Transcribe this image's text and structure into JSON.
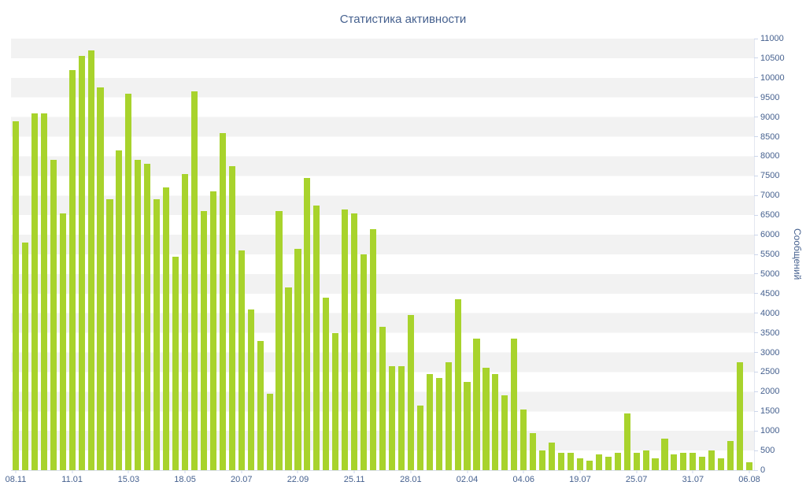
{
  "chart_data": {
    "type": "bar",
    "title": "Статистика активности",
    "xlabel": "",
    "ylabel": "Сообщений",
    "ylim": [
      0,
      11000
    ],
    "ytick_interval": 500,
    "yticks": [
      0,
      500,
      1000,
      1500,
      2000,
      2500,
      3000,
      3500,
      4000,
      4500,
      5000,
      5500,
      6000,
      6500,
      7000,
      7500,
      8000,
      8500,
      9000,
      9500,
      10000,
      10500,
      11000
    ],
    "x_tick_labels": [
      "08.11",
      "11.01",
      "15.03",
      "18.05",
      "20.07",
      "22.09",
      "25.11",
      "28.01",
      "02.04",
      "04.06",
      "19.07",
      "25.07",
      "31.07",
      "06.08"
    ],
    "x_tick_every": 6,
    "values": [
      8900,
      5800,
      9100,
      9100,
      7900,
      6550,
      10200,
      10550,
      10700,
      9750,
      6900,
      8150,
      9600,
      7900,
      7800,
      6900,
      7200,
      5450,
      7550,
      9650,
      6600,
      7100,
      8600,
      7750,
      5600,
      4100,
      3300,
      1950,
      6600,
      4650,
      5650,
      7450,
      6750,
      4400,
      3500,
      6650,
      6550,
      5500,
      6150,
      3650,
      2650,
      2650,
      3950,
      1650,
      2450,
      2350,
      2750,
      4350,
      2250,
      3350,
      2600,
      2450,
      1900,
      3350,
      1550,
      950,
      500,
      700,
      450,
      450,
      300,
      250,
      400,
      350,
      450,
      1450,
      450,
      500,
      300,
      800,
      400,
      450,
      450,
      350,
      500,
      300,
      750,
      2750,
      200
    ],
    "legend": "none",
    "grid": "alternating-horizontal-bands",
    "colors": {
      "bar": "#a8d32c",
      "band": "#f2f2f2",
      "text": "#46618f",
      "axis_line": "#ccd6eb",
      "background": "#ffffff"
    }
  }
}
